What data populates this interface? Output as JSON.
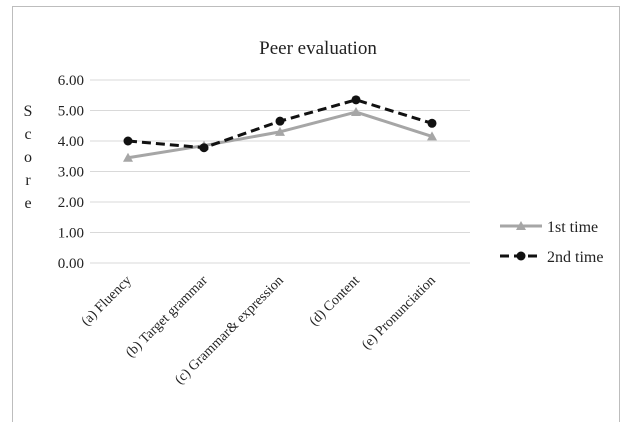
{
  "chart_data": {
    "type": "line",
    "title": "Peer evaluation",
    "xlabel": "",
    "ylabel": "Score",
    "ylim": [
      0,
      6
    ],
    "yticks": [
      "0.00",
      "1.00",
      "2.00",
      "3.00",
      "4.00",
      "5.00",
      "6.00"
    ],
    "grid": true,
    "legend_position": "right",
    "categories": [
      "(a) Fluency",
      "(b) Target grammar",
      "(c) Grammar& expression",
      "(d) Content",
      "(e) Pronunciation"
    ],
    "series": [
      {
        "name": "1st time",
        "values": [
          3.45,
          3.85,
          4.3,
          4.95,
          4.15
        ],
        "color": "#a6a6a6",
        "style": "solid",
        "marker": "triangle"
      },
      {
        "name": "2nd time",
        "values": [
          4.0,
          3.78,
          4.65,
          5.35,
          4.58
        ],
        "color": "#111111",
        "style": "dashed",
        "marker": "circle"
      }
    ]
  }
}
